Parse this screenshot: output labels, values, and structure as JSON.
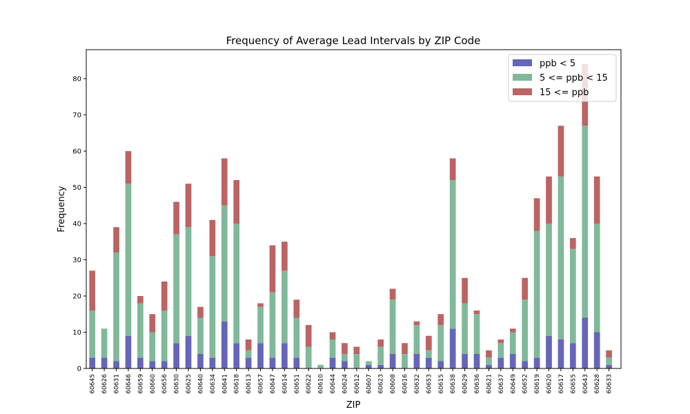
{
  "chart_data": {
    "type": "bar",
    "stacked": true,
    "title": "Frequency of Average Lead Intervals by ZIP Code",
    "xlabel": "ZIP",
    "ylabel": "Frequency",
    "ylim": [
      0,
      88
    ],
    "yticks": [
      0,
      10,
      20,
      30,
      40,
      50,
      60,
      70,
      80
    ],
    "grid": false,
    "legend_position": "top-right",
    "categories": [
      "60645",
      "60626",
      "60631",
      "60646",
      "60659",
      "60660",
      "60656",
      "60630",
      "60625",
      "60640",
      "60634",
      "60641",
      "60618",
      "60613",
      "60657",
      "60647",
      "60614",
      "60651",
      "60622",
      "60610",
      "60644",
      "60624",
      "60612",
      "60607",
      "60623",
      "60608",
      "60616",
      "60632",
      "60653",
      "60615",
      "60638",
      "60629",
      "60636",
      "60621",
      "60637",
      "60649",
      "60652",
      "60619",
      "60620",
      "60617",
      "60655",
      "60643",
      "60628",
      "60633"
    ],
    "series": [
      {
        "name": "ppb < 5",
        "color": "#6666b8",
        "values": [
          3,
          3,
          2,
          9,
          3,
          2,
          2,
          7,
          9,
          4,
          3,
          13,
          7,
          3,
          7,
          3,
          7,
          3,
          0,
          0,
          3,
          2,
          0,
          1,
          1,
          4,
          0,
          4,
          3,
          2,
          11,
          4,
          4,
          1,
          3,
          4,
          2,
          3,
          9,
          8,
          7,
          14,
          10,
          1
        ]
      },
      {
        "name": "5 <= ppb < 15",
        "color": "#80b99a",
        "values": [
          13,
          8,
          30,
          42,
          15,
          8,
          14,
          30,
          30,
          10,
          28,
          32,
          33,
          2,
          10,
          18,
          20,
          11,
          6,
          1,
          5,
          2,
          4,
          1,
          5,
          15,
          4,
          8,
          2,
          10,
          41,
          14,
          11,
          2,
          4,
          6,
          17,
          35,
          31,
          45,
          26,
          53,
          30,
          2
        ]
      },
      {
        "name": "15 <= ppb",
        "color": "#bb6464",
        "values": [
          11,
          0,
          7,
          9,
          2,
          5,
          8,
          9,
          12,
          3,
          10,
          13,
          12,
          3,
          1,
          13,
          8,
          5,
          6,
          0,
          2,
          3,
          2,
          0,
          2,
          3,
          3,
          1,
          4,
          3,
          6,
          7,
          1,
          2,
          1,
          1,
          6,
          9,
          13,
          14,
          3,
          17,
          13,
          2
        ]
      }
    ]
  }
}
